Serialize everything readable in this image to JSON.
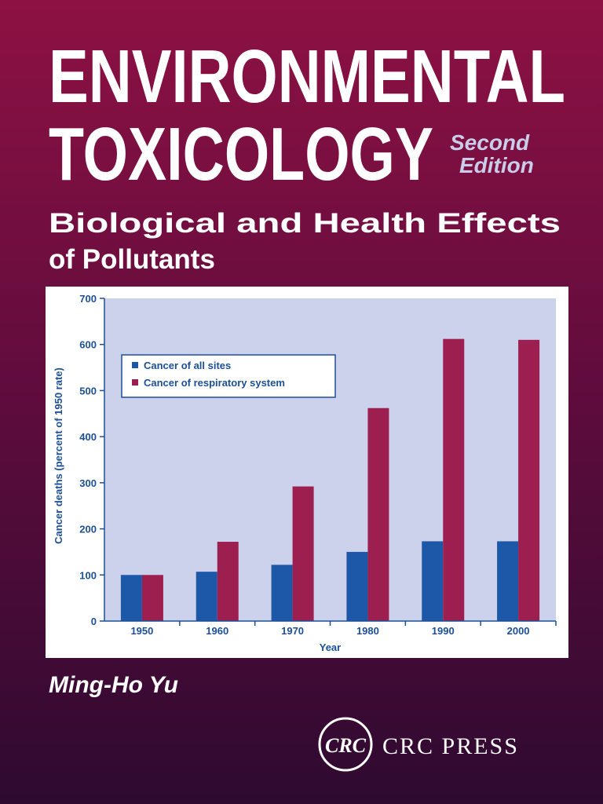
{
  "cover": {
    "title_line1": "ENVIRONMENTAL",
    "title_line2": "TOXICOLOGY",
    "edition_line1": "Second",
    "edition_line2": "Edition",
    "subtitle_line1": "Biological and Health Effects",
    "subtitle_line2": "of Pollutants",
    "author": "Ming-Ho Yu",
    "publisher_logo": "CRC",
    "publisher": "CRC PRESS"
  },
  "chart_data": {
    "type": "bar",
    "x_label": "Year",
    "y_label": "Cancer deaths (percent of 1950 rate)",
    "categories": [
      "1950",
      "1960",
      "1970",
      "1980",
      "1990",
      "2000"
    ],
    "series": [
      {
        "name": "Cancer of all sites",
        "color": "#1c57a8",
        "values": [
          100,
          107,
          122,
          150,
          173,
          173
        ]
      },
      {
        "name": "Cancer of respiratory system",
        "color": "#9c1f50",
        "values": [
          100,
          172,
          292,
          462,
          612,
          610
        ]
      }
    ],
    "ylim": [
      0,
      700
    ],
    "yticks": [
      0,
      100,
      200,
      300,
      400,
      500,
      600,
      700
    ],
    "legend": "upper left"
  }
}
